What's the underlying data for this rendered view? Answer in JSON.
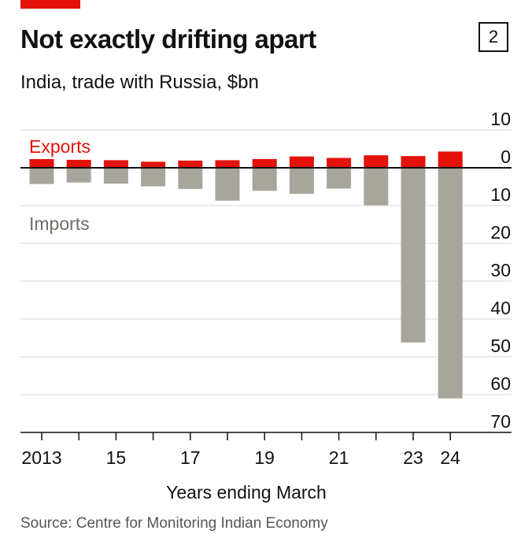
{
  "header": {
    "title": "Not exactly drifting apart",
    "badge": "2",
    "subtitle": "India, trade with Russia, $bn"
  },
  "footer": {
    "source": "Source: Centre for Monitoring Indian Economy"
  },
  "colors": {
    "exports": "#e3120b",
    "imports": "#a8a69c",
    "axis": "#111111",
    "grid": "#d6d6d6"
  },
  "chart_data": {
    "type": "bar",
    "xlabel": "Years ending March",
    "x": [
      2013,
      2014,
      2015,
      2016,
      2017,
      2018,
      2019,
      2020,
      2021,
      2022,
      2023,
      2024
    ],
    "x_tick_labels": [
      {
        "x": 2013,
        "label": "2013"
      },
      {
        "x": 2015,
        "label": "15"
      },
      {
        "x": 2017,
        "label": "17"
      },
      {
        "x": 2019,
        "label": "19"
      },
      {
        "x": 2021,
        "label": "21"
      },
      {
        "x": 2023,
        "label": "23"
      },
      {
        "x": 2024,
        "label": "24"
      }
    ],
    "ylim": [
      -10,
      70
    ],
    "y_axis_note": "exports plotted above zero, imports plotted below zero",
    "y_ticks": [
      {
        "value": -10,
        "label": "10"
      },
      {
        "value": 0,
        "label": "0"
      },
      {
        "value": 10,
        "label": "10"
      },
      {
        "value": 20,
        "label": "20"
      },
      {
        "value": 30,
        "label": "30"
      },
      {
        "value": 40,
        "label": "40"
      },
      {
        "value": 50,
        "label": "50"
      },
      {
        "value": 60,
        "label": "60"
      },
      {
        "value": 70,
        "label": "70"
      }
    ],
    "grid": true,
    "series": [
      {
        "name": "Exports",
        "values": [
          2.3,
          2.1,
          2.0,
          1.6,
          1.9,
          2.0,
          2.3,
          3.0,
          2.6,
          3.3,
          3.1,
          4.3
        ]
      },
      {
        "name": "Imports",
        "values": [
          4.3,
          3.9,
          4.2,
          4.9,
          5.6,
          8.7,
          6.1,
          6.9,
          5.5,
          9.9,
          46.2,
          61.0
        ]
      }
    ]
  }
}
